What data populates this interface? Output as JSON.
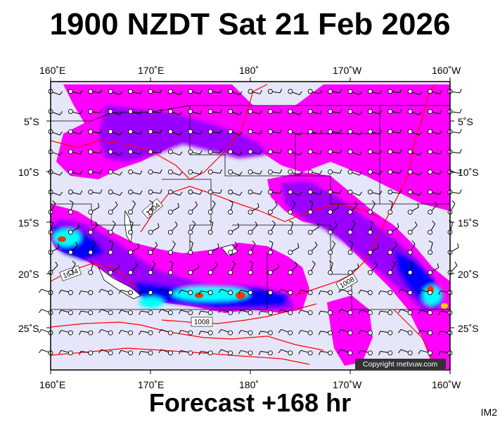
{
  "title": "1900 NZDT Sat 21 Feb 2026",
  "footer": "Forecast +168 hr",
  "corner_label": "IM2",
  "copyright": "Copyright metvuw.com",
  "lon_labels": [
    "160˚E",
    "170˚E",
    "180˚",
    "170˚W",
    "160˚W"
  ],
  "lat_labels": [
    "5˚S",
    "10˚S",
    "15˚S",
    "20˚S",
    "25˚S"
  ],
  "isobar_labels": [
    "1004",
    "1004",
    "1008",
    "1008"
  ],
  "colors": {
    "background_map": "#e6e6fa",
    "rain_light": "#ff00ff",
    "rain_medium": "#9900ff",
    "rain_heavy": "#0000ff",
    "rain_very_heavy": "#00ffff",
    "rain_extreme": "#ff3300",
    "isobar": "#ff0000",
    "land": "#ffffff"
  }
}
